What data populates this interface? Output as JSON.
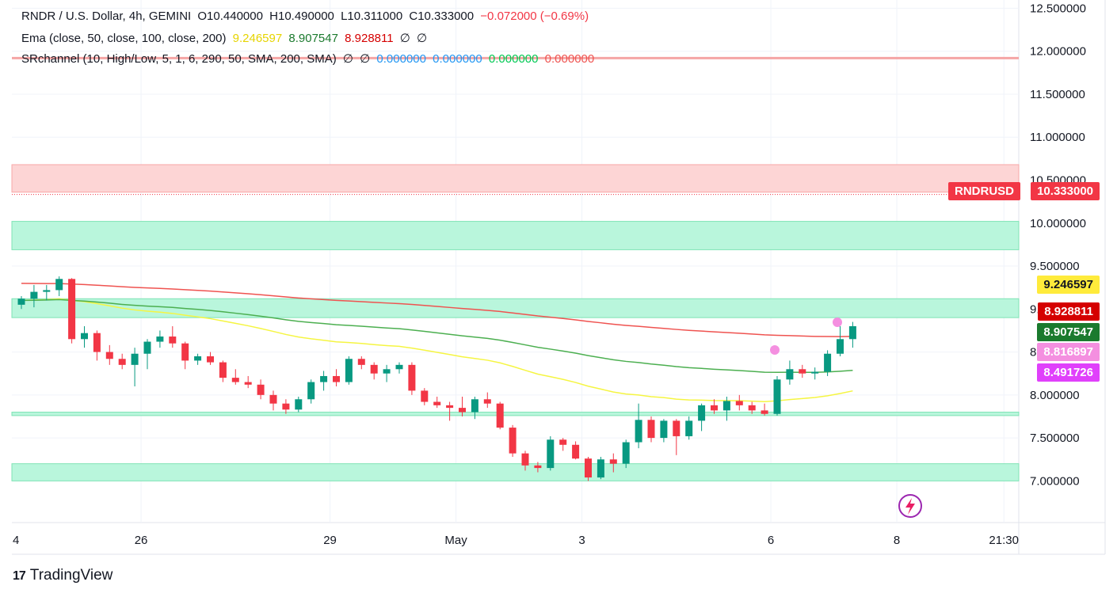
{
  "legend": {
    "line1": {
      "symbol": "RNDR / U.S. Dollar, 4h, GEMINI",
      "o": "O10.440000",
      "h": "H10.490000",
      "l": "L10.311000",
      "c": "C10.333000",
      "chg": "−0.072000 (−0.69%)"
    },
    "line2": {
      "name": "Ema (close, 50, close, 100, close, 200)",
      "v1": "9.246597",
      "v2": "8.907547",
      "v3": "8.928811",
      "na1": "∅",
      "na2": "∅"
    },
    "line3": {
      "name": "SRchannel (10, High/Low, 5, 1, 6, 290, 50, SMA, 200, SMA)",
      "na1": "∅",
      "na2": "∅",
      "v1": "0.000000",
      "v2": "0.000000",
      "v3": "0.000000",
      "v4": "0.000000"
    }
  },
  "colors": {
    "up": "#089981",
    "down": "#f23645",
    "ema50": "#f5f542",
    "ema100": "#4caf50",
    "ema200": "#ef5350",
    "support": "#b9f6dc",
    "resistance": "#fdd5d5",
    "blue": "#2196f3",
    "green": "#00c853",
    "red": "#ef5350",
    "yellowText": "#e6d400"
  },
  "symbol_label": "RNDRUSD",
  "price_labels": [
    {
      "value": "10.333000",
      "bg": "#f23645",
      "fg": "#ffffff"
    },
    {
      "value": "9.246597",
      "bg": "#ffeb3b",
      "fg": "#131722"
    },
    {
      "value": "8.928811",
      "bg": "#d50000",
      "fg": "#ffffff"
    },
    {
      "value": "8.907547",
      "bg": "#1b7a2e",
      "fg": "#ffffff"
    },
    {
      "value": "8.816897",
      "bg": "#f48fe0",
      "fg": "#ffffff"
    },
    {
      "value": "8.491726",
      "bg": "#e040fb",
      "fg": "#ffffff"
    }
  ],
  "footer": {
    "logo": "17",
    "brand": "TradingView"
  },
  "chart_data": {
    "type": "candlestick",
    "y_ticks": [
      "7.000000",
      "7.500000",
      "8.000000",
      "8.500000",
      "9.000000",
      "9.500000",
      "10.000000",
      "10.500000",
      "11.000000",
      "11.500000",
      "12.000000",
      "12.500000"
    ],
    "ylim": [
      6.6,
      12.55
    ],
    "x_ticks": [
      {
        "label": "4",
        "index": -1
      },
      {
        "label": "26",
        "index": 9.5
      },
      {
        "label": "29",
        "index": 24.5
      },
      {
        "label": "May",
        "index": 34.5
      },
      {
        "label": "3",
        "index": 44.5
      },
      {
        "label": "6",
        "index": 59.5
      },
      {
        "label": "8",
        "index": 69.5
      },
      {
        "label": "21:30",
        "index": 78
      }
    ],
    "zones": [
      {
        "low": 10.36,
        "high": 10.68,
        "kind": "resistance"
      },
      {
        "low": 9.69,
        "high": 10.02,
        "kind": "support"
      },
      {
        "low": 8.9,
        "high": 9.12,
        "kind": "support"
      },
      {
        "low": 7.76,
        "high": 7.8,
        "kind": "support"
      },
      {
        "low": 7.0,
        "high": 7.2,
        "kind": "support"
      }
    ],
    "resistance_line": 11.92,
    "current_price": 10.333,
    "candles": [
      [
        9.05,
        9.15,
        9.0,
        9.12
      ],
      [
        9.12,
        9.28,
        9.02,
        9.2
      ],
      [
        9.2,
        9.28,
        9.1,
        9.22
      ],
      [
        9.22,
        9.38,
        9.15,
        9.35
      ],
      [
        9.35,
        9.36,
        8.6,
        8.65
      ],
      [
        8.65,
        8.8,
        8.55,
        8.72
      ],
      [
        8.72,
        8.75,
        8.4,
        8.5
      ],
      [
        8.5,
        8.58,
        8.35,
        8.42
      ],
      [
        8.42,
        8.48,
        8.3,
        8.35
      ],
      [
        8.35,
        8.55,
        8.1,
        8.48
      ],
      [
        8.48,
        8.65,
        8.3,
        8.62
      ],
      [
        8.62,
        8.75,
        8.55,
        8.68
      ],
      [
        8.68,
        8.8,
        8.55,
        8.6
      ],
      [
        8.6,
        8.62,
        8.3,
        8.4
      ],
      [
        8.4,
        8.48,
        8.35,
        8.45
      ],
      [
        8.45,
        8.5,
        8.35,
        8.38
      ],
      [
        8.38,
        8.4,
        8.15,
        8.2
      ],
      [
        8.2,
        8.3,
        8.12,
        8.15
      ],
      [
        8.15,
        8.22,
        8.08,
        8.12
      ],
      [
        8.12,
        8.18,
        7.95,
        8.0
      ],
      [
        8.0,
        8.05,
        7.82,
        7.9
      ],
      [
        7.9,
        7.95,
        7.78,
        7.83
      ],
      [
        7.83,
        7.98,
        7.8,
        7.95
      ],
      [
        7.95,
        8.18,
        7.9,
        8.15
      ],
      [
        8.15,
        8.28,
        8.05,
        8.22
      ],
      [
        8.22,
        8.3,
        8.1,
        8.15
      ],
      [
        8.15,
        8.45,
        8.12,
        8.42
      ],
      [
        8.42,
        8.45,
        8.3,
        8.35
      ],
      [
        8.35,
        8.38,
        8.18,
        8.25
      ],
      [
        8.25,
        8.35,
        8.15,
        8.3
      ],
      [
        8.3,
        8.38,
        8.25,
        8.35
      ],
      [
        8.35,
        8.38,
        8.0,
        8.05
      ],
      [
        8.05,
        8.08,
        7.88,
        7.92
      ],
      [
        7.92,
        7.98,
        7.85,
        7.88
      ],
      [
        7.88,
        7.92,
        7.7,
        7.85
      ],
      [
        7.85,
        7.98,
        7.75,
        7.8
      ],
      [
        7.8,
        7.98,
        7.72,
        7.95
      ],
      [
        7.95,
        8.03,
        7.85,
        7.9
      ],
      [
        7.9,
        7.92,
        7.6,
        7.62
      ],
      [
        7.62,
        7.65,
        7.28,
        7.32
      ],
      [
        7.32,
        7.35,
        7.12,
        7.18
      ],
      [
        7.18,
        7.22,
        7.1,
        7.15
      ],
      [
        7.15,
        7.52,
        7.12,
        7.48
      ],
      [
        7.48,
        7.5,
        7.35,
        7.42
      ],
      [
        7.42,
        7.46,
        7.25,
        7.26
      ],
      [
        7.26,
        7.28,
        7.0,
        7.04
      ],
      [
        7.04,
        7.28,
        7.02,
        7.25
      ],
      [
        7.25,
        7.32,
        7.1,
        7.2
      ],
      [
        7.2,
        7.48,
        7.15,
        7.45
      ],
      [
        7.45,
        7.9,
        7.38,
        7.71
      ],
      [
        7.71,
        7.75,
        7.45,
        7.5
      ],
      [
        7.5,
        7.72,
        7.45,
        7.7
      ],
      [
        7.7,
        7.72,
        7.3,
        7.52
      ],
      [
        7.52,
        7.75,
        7.48,
        7.7
      ],
      [
        7.7,
        7.9,
        7.58,
        7.88
      ],
      [
        7.88,
        7.95,
        7.78,
        7.82
      ],
      [
        7.82,
        7.98,
        7.7,
        7.93
      ],
      [
        7.93,
        8.0,
        7.82,
        7.88
      ],
      [
        7.88,
        7.92,
        7.78,
        7.82
      ],
      [
        7.82,
        7.9,
        7.76,
        7.78
      ],
      [
        7.78,
        8.22,
        7.76,
        8.18
      ],
      [
        8.18,
        8.4,
        8.12,
        8.3
      ],
      [
        8.3,
        8.35,
        8.2,
        8.25
      ],
      [
        8.25,
        8.32,
        8.18,
        8.27
      ],
      [
        8.27,
        8.52,
        8.22,
        8.48
      ],
      [
        8.48,
        8.8,
        8.45,
        8.65
      ],
      [
        8.65,
        8.85,
        8.55,
        8.8
      ]
    ]
  }
}
